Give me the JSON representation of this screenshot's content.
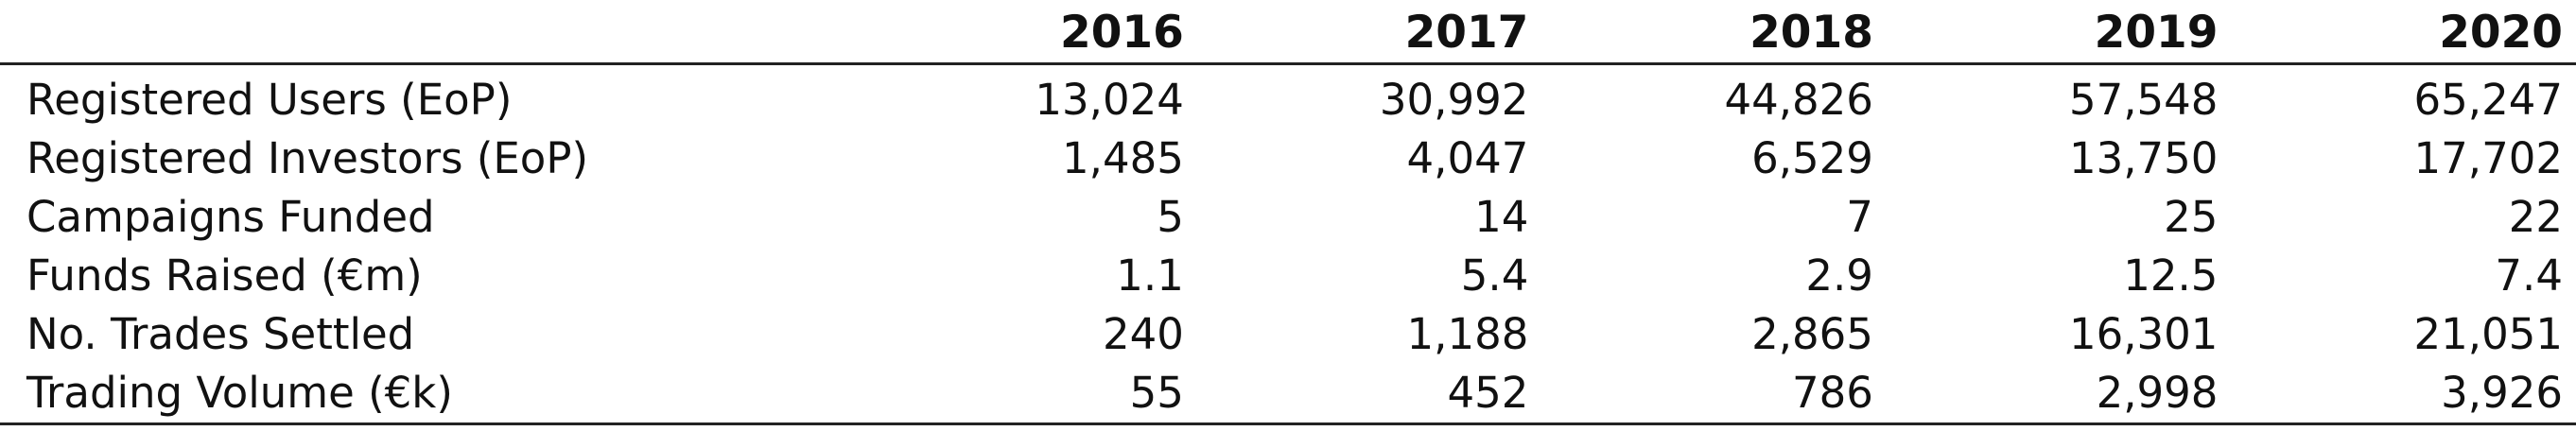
{
  "chart_data": {
    "type": "table",
    "columns": [
      "2016",
      "2017",
      "2018",
      "2019",
      "2020"
    ],
    "rows": [
      {
        "label": "Registered Users (EoP)",
        "values": [
          "13,024",
          "30,992",
          "44,826",
          "57,548",
          "65,247"
        ]
      },
      {
        "label": "Registered Investors (EoP)",
        "values": [
          "1,485",
          "4,047",
          "6,529",
          "13,750",
          "17,702"
        ]
      },
      {
        "label": "Campaigns Funded",
        "values": [
          "5",
          "14",
          "7",
          "25",
          "22"
        ]
      },
      {
        "label": "Funds Raised (€m)",
        "values": [
          "1.1",
          "5.4",
          "2.9",
          "12.5",
          "7.4"
        ]
      },
      {
        "label": "No. Trades Settled",
        "values": [
          "240",
          "1,188",
          "2,865",
          "16,301",
          "21,051"
        ]
      },
      {
        "label": "Trading Volume (€k)",
        "values": [
          "55",
          "452",
          "786",
          "2,998",
          "3,926"
        ]
      }
    ]
  }
}
